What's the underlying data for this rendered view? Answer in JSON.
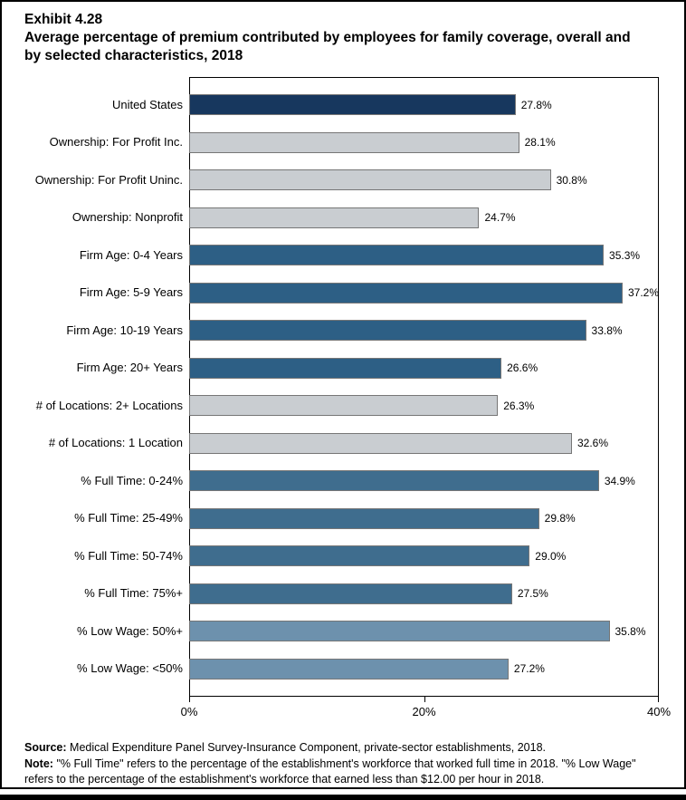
{
  "header": {
    "exhibit": "Exhibit 4.28",
    "title": "Average percentage of premium contributed by employees for family coverage, overall and\nby selected characteristics, 2018"
  },
  "chart_data": {
    "type": "bar",
    "orientation": "horizontal",
    "xlim": [
      0,
      40
    ],
    "xticks": [
      "0%",
      "20%",
      "40%"
    ],
    "grid": false,
    "legend": "none",
    "group_colors": {
      "navy": "#17375E",
      "gray": "#C9CDD1",
      "medium_blue": "#2D5F85",
      "steel_blue": "#3F6D8E",
      "light_steel_blue": "#6D91AD"
    },
    "bar_border_color": "#767676",
    "bars": [
      {
        "label": "United States",
        "value": 27.8,
        "display": "27.8%",
        "group": "navy"
      },
      {
        "label": "Ownership: For Profit Inc.",
        "value": 28.1,
        "display": "28.1%",
        "group": "gray"
      },
      {
        "label": "Ownership: For Profit Uninc.",
        "value": 30.8,
        "display": "30.8%",
        "group": "gray"
      },
      {
        "label": "Ownership: Nonprofit",
        "value": 24.7,
        "display": "24.7%",
        "group": "gray"
      },
      {
        "label": "Firm Age: 0-4 Years",
        "value": 35.3,
        "display": "35.3%",
        "group": "medium_blue"
      },
      {
        "label": "Firm Age: 5-9 Years",
        "value": 37.2,
        "display": "37.2%",
        "group": "medium_blue"
      },
      {
        "label": "Firm Age: 10-19 Years",
        "value": 33.8,
        "display": "33.8%",
        "group": "medium_blue"
      },
      {
        "label": "Firm Age: 20+ Years",
        "value": 26.6,
        "display": "26.6%",
        "group": "medium_blue"
      },
      {
        "label": "# of Locations: 2+ Locations",
        "value": 26.3,
        "display": "26.3%",
        "group": "gray"
      },
      {
        "label": "# of Locations: 1 Location",
        "value": 32.6,
        "display": "32.6%",
        "group": "gray"
      },
      {
        "label": "% Full Time: 0-24%",
        "value": 34.9,
        "display": "34.9%",
        "group": "steel_blue"
      },
      {
        "label": "% Full Time: 25-49%",
        "value": 29.8,
        "display": "29.8%",
        "group": "steel_blue"
      },
      {
        "label": "% Full Time: 50-74%",
        "value": 29.0,
        "display": "29.0%",
        "group": "steel_blue"
      },
      {
        "label": "% Full Time: 75%+",
        "value": 27.5,
        "display": "27.5%",
        "group": "steel_blue"
      },
      {
        "label": "% Low Wage: 50%+",
        "value": 35.8,
        "display": "35.8%",
        "group": "light_steel_blue"
      },
      {
        "label": "% Low Wage: <50%",
        "value": 27.2,
        "display": "27.2%",
        "group": "light_steel_blue"
      }
    ]
  },
  "footer": {
    "source_label": "Source:",
    "source_text": "Medical Expenditure Panel Survey-Insurance Component, private-sector establishments, 2018.",
    "note_label": "Note:",
    "note_text": "\"% Full Time\" refers to the percentage of the establishment's workforce that worked full time in 2018. \"% Low Wage\" refers to the percentage of the establishment's workforce that earned less than $12.00 per hour in 2018."
  }
}
